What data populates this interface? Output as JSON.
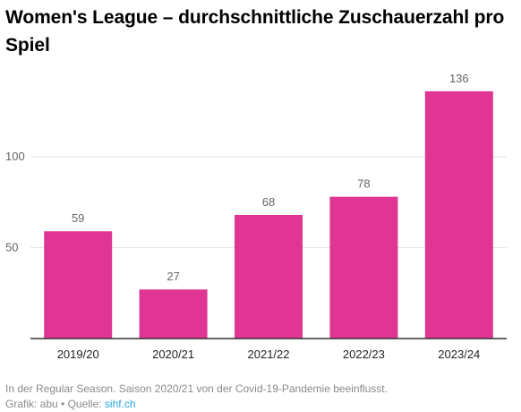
{
  "title": "Women's League – durchschnittliche Zuschauerzahl pro Spiel",
  "notes": "In der Regular Season. Saison 2020/21 von der Covid-19-Pandemie beeinflusst.",
  "credit": {
    "prefix": "Grafik: abu • Quelle: ",
    "source_link": "sihf.ch"
  },
  "colors": {
    "bar": "#e03593",
    "grid": "#e3e3e3",
    "axis": "#333333",
    "link": "#2aa6e0"
  },
  "chart_data": {
    "type": "bar",
    "title": "Women's League – durchschnittliche Zuschauerzahl pro Spiel",
    "xlabel": "",
    "ylabel": "",
    "categories": [
      "2019/20",
      "2020/21",
      "2021/22",
      "2022/23",
      "2023/24"
    ],
    "values": [
      59,
      27,
      68,
      78,
      136
    ],
    "ylim": [
      0,
      136
    ],
    "yticks": [
      50,
      100
    ],
    "grid": true,
    "data_labels": true
  }
}
